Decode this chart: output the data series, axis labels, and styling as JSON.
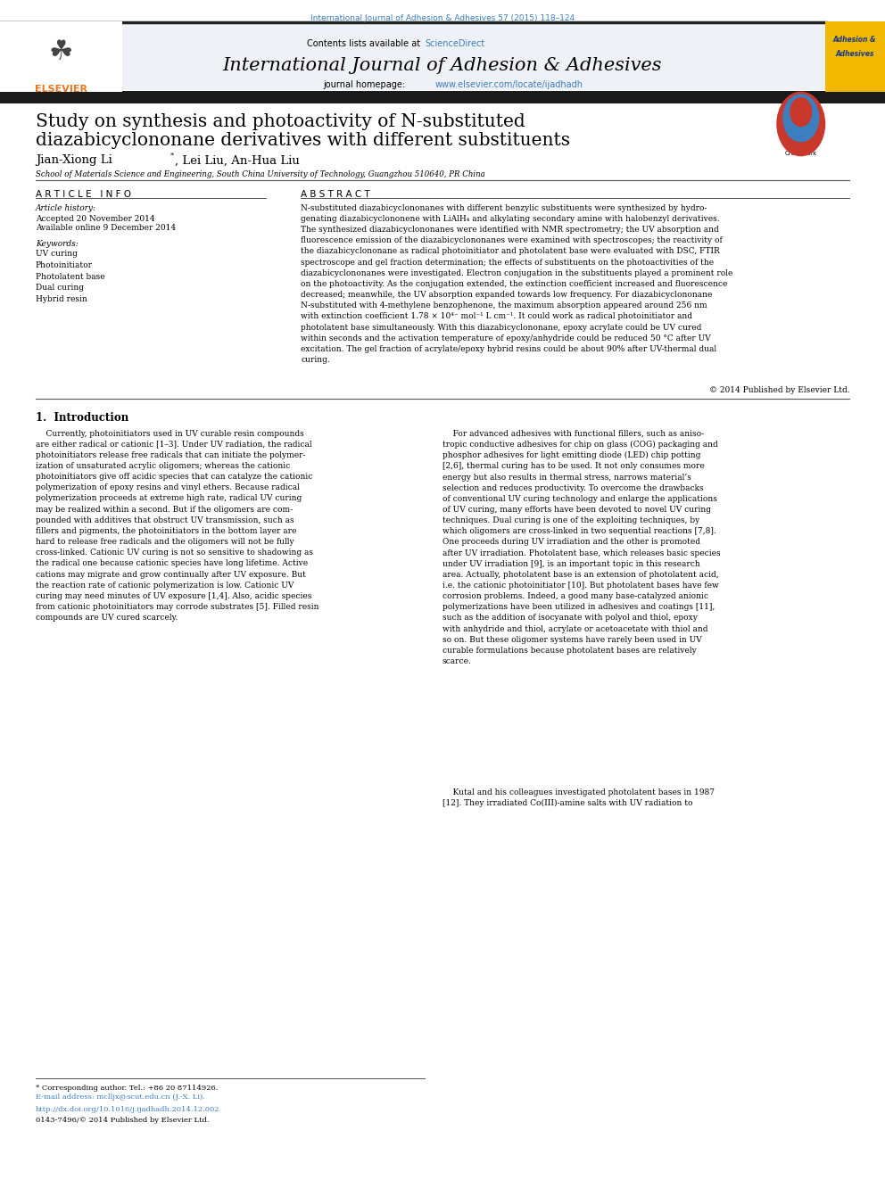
{
  "page_width": 9.92,
  "page_height": 13.23,
  "bg_color": "#ffffff",
  "journal_ref": "International Journal of Adhesion & Adhesives 57 (2015) 118–124",
  "journal_ref_color": "#3d7ebf",
  "journal_name": "International Journal of Adhesion & Adhesives",
  "header_bg": "#eef1f5",
  "sciencedirect_color": "#3d7ebf",
  "journal_url": "www.elsevier.com/locate/ijadhadh",
  "journal_url_color": "#3d7ebf",
  "elsevier_logo_color": "#e87722",
  "article_title_line1": "Study on synthesis and photoactivity of N-substituted",
  "article_title_line2": "diazabicyclononane derivatives with different substituents",
  "affiliation": "School of Materials Science and Engineering, South China University of Technology, Guangzhou 510640, PR China",
  "article_info_header": "A R T I C L E   I N F O",
  "abstract_header": "A B S T R A C T",
  "accepted_date": "Accepted 20 November 2014",
  "available_date": "Available online 9 December 2014",
  "keywords": [
    "UV curing",
    "Photoinitiator",
    "Photolatent base",
    "Dual curing",
    "Hybrid resin"
  ],
  "copyright_text": "© 2014 Published by Elsevier Ltd.",
  "section1_title": "1.  Introduction",
  "journal_ref_color_blue": "#3d7ebf",
  "footnote_text": "* Corresponding author. Tel.: +86 20 87114926.",
  "footnote_email": "E-mail address: mclljx@scut.edu.cn (J.-X. Li).",
  "footnote_doi": "http://dx.doi.org/10.1016/j.ijadhadh.2014.12.002",
  "footnote_issn": "0143-7496/© 2014 Published by Elsevier Ltd."
}
